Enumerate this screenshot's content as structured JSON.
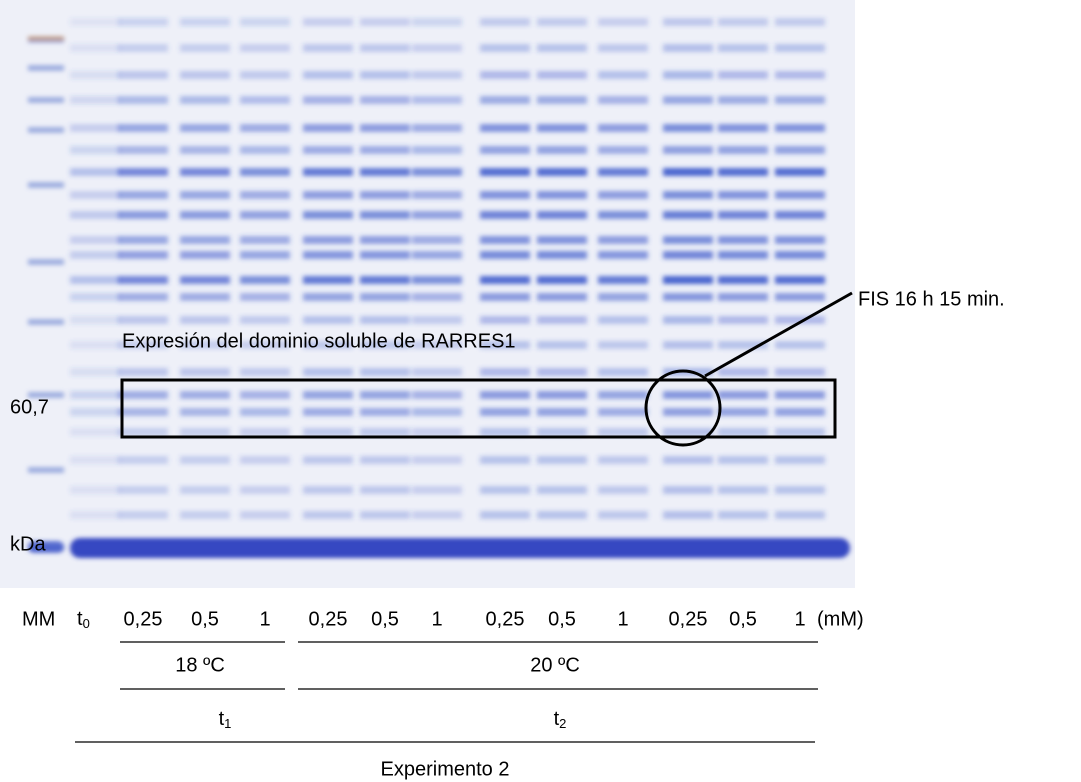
{
  "annotations": {
    "fis": "FIS 16 h 15 min.",
    "expression": "Expresión del dominio soluble de RARRES1"
  },
  "markers": {
    "mw": "60,7",
    "unit": "kDa"
  },
  "lanes": {
    "marker": "MM",
    "t0": {
      "base": "t",
      "sub": "0"
    },
    "concentrations": [
      "0,25",
      "0,5",
      "1",
      "0,25",
      "0,5",
      "1",
      "0,25",
      "0,5",
      "1",
      "0,25",
      "0,5",
      "1"
    ],
    "unit": "(mM)"
  },
  "groups": {
    "temperatures": [
      "18 ºC",
      "20 ºC"
    ],
    "times": [
      {
        "base": "t",
        "sub": "1"
      },
      {
        "base": "t",
        "sub": "2"
      }
    ],
    "experiment": "Experimento 2"
  }
}
